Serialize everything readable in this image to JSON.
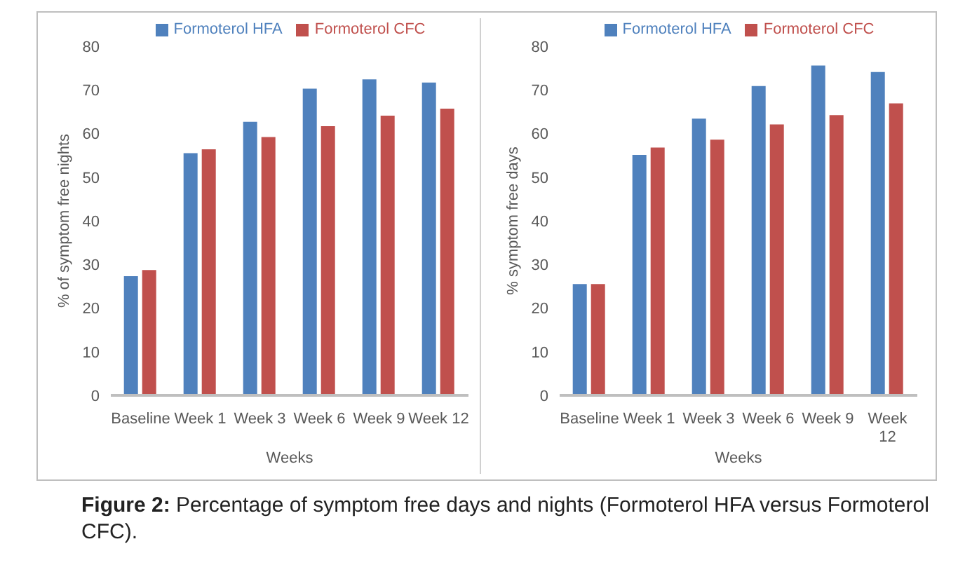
{
  "chart_data": [
    {
      "type": "bar",
      "categories": [
        "Baseline",
        "Week 1",
        "Week 3",
        "Week 6",
        "Week 9",
        "Week 12"
      ],
      "xlabel": "Weeks",
      "ylabel": "% of symptom free nights",
      "ylim": [
        0,
        80
      ],
      "yticks": [
        0,
        10,
        20,
        30,
        40,
        50,
        60,
        70,
        80
      ],
      "grid": false,
      "legend": "top",
      "series": [
        {
          "name": "Formoterol HFA",
          "color": "#4f81bd",
          "values": [
            27.3,
            55.5,
            62.7,
            70.3,
            72.4,
            71.7
          ]
        },
        {
          "name": "Formoterol CFC",
          "color": "#c0504d",
          "values": [
            28.7,
            56.4,
            59.2,
            61.7,
            64.1,
            65.7
          ]
        }
      ],
      "annotations": [
        "Figure 2: Percentage of symptom free days and nights (Formoterol HFA versus Formoterol CFC)."
      ]
    },
    {
      "type": "bar",
      "categories": [
        "Baseline",
        "Week 1",
        "Week 3",
        "Week 6",
        "Week 9",
        "Week 12"
      ],
      "xlabel": "Weeks",
      "ylabel": "% symptom free days",
      "ylim": [
        0,
        80
      ],
      "yticks": [
        0,
        10,
        20,
        30,
        40,
        50,
        60,
        70,
        80
      ],
      "grid": false,
      "legend": "top",
      "series": [
        {
          "name": "Formoterol HFA",
          "color": "#4f81bd",
          "values": [
            25.5,
            55.1,
            63.4,
            70.9,
            75.6,
            74.1
          ]
        },
        {
          "name": "Formoterol CFC",
          "color": "#c0504d",
          "values": [
            25.5,
            56.8,
            58.6,
            62.1,
            64.2,
            66.9
          ]
        }
      ]
    }
  ]
}
